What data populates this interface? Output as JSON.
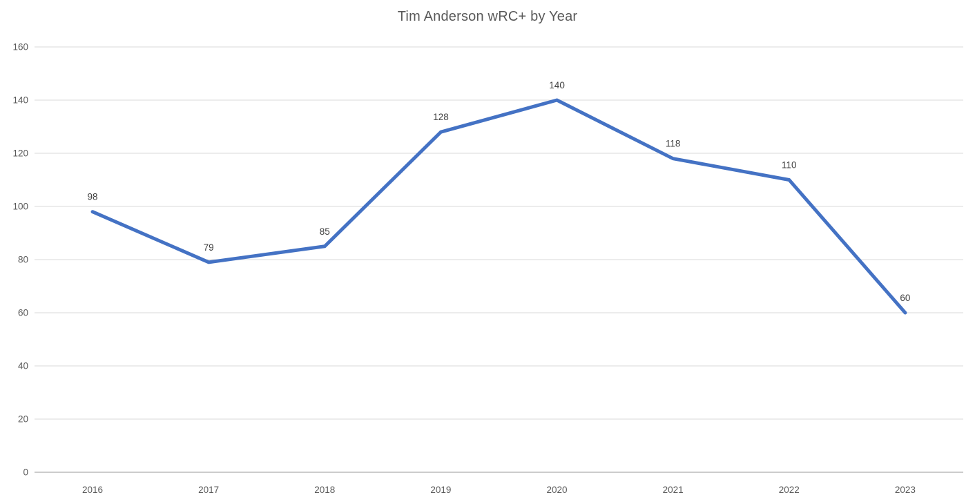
{
  "chart_data": {
    "type": "line",
    "title": "Tim Anderson wRC+ by Year",
    "categories": [
      "2016",
      "2017",
      "2018",
      "2019",
      "2020",
      "2021",
      "2022",
      "2023"
    ],
    "values": [
      98,
      79,
      85,
      128,
      140,
      118,
      110,
      60
    ],
    "data_labels": [
      "98",
      "79",
      "85",
      "128",
      "140",
      "118",
      "110",
      "60"
    ],
    "xlabel": "",
    "ylabel": "",
    "ylim": [
      0,
      160
    ],
    "ytick_step": 20,
    "ytick_labels": [
      "0",
      "20",
      "40",
      "60",
      "80",
      "100",
      "120",
      "140",
      "160"
    ],
    "grid": true,
    "legend": false,
    "colors": {
      "line": "#4472C4",
      "gridline": "#D9D9D9",
      "axis_line": "#CCCCCC",
      "tick_label": "#595959",
      "data_label": "#404040",
      "title": "#595959",
      "background": "#FFFFFF"
    }
  }
}
